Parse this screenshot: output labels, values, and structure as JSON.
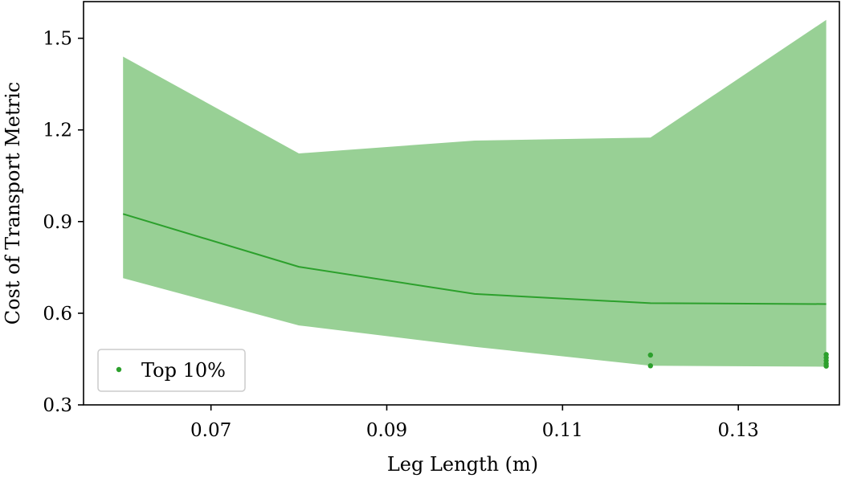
{
  "chart_data": {
    "type": "line",
    "title": "",
    "xlabel": "Leg Length (m)",
    "ylabel": "Cost of Transport Metric",
    "xlim": [
      0.0555,
      0.1415
    ],
    "ylim": [
      0.3,
      1.62
    ],
    "xticks": [
      0.07,
      0.09,
      0.11,
      0.13
    ],
    "xtick_labels": [
      "0.07",
      "0.09",
      "0.11",
      "0.13"
    ],
    "yticks": [
      0.3,
      0.6,
      0.9,
      1.2,
      1.5
    ],
    "ytick_labels": [
      "0.3",
      "0.6",
      "0.9",
      "1.2",
      "1.5"
    ],
    "grid": false,
    "legend_position": "bottom-left",
    "colors": {
      "line": "#2ca02c",
      "band": "#98d095",
      "points": "#2ca02c",
      "axes": "#000000"
    },
    "mean_line": {
      "x": [
        0.06,
        0.08,
        0.1,
        0.12,
        0.14
      ],
      "y": [
        0.925,
        0.752,
        0.663,
        0.633,
        0.63
      ]
    },
    "band": {
      "x": [
        0.06,
        0.08,
        0.1,
        0.12,
        0.14
      ],
      "upper": [
        1.44,
        1.123,
        1.165,
        1.175,
        1.56
      ],
      "lower": [
        0.715,
        0.56,
        0.49,
        0.428,
        0.425
      ]
    },
    "series": [
      {
        "name": "Top 10%",
        "type": "scatter",
        "x": [
          0.12,
          0.12,
          0.14,
          0.14,
          0.14,
          0.14,
          0.14
        ],
        "y": [
          0.463,
          0.428,
          0.465,
          0.455,
          0.445,
          0.435,
          0.427
        ]
      }
    ]
  }
}
